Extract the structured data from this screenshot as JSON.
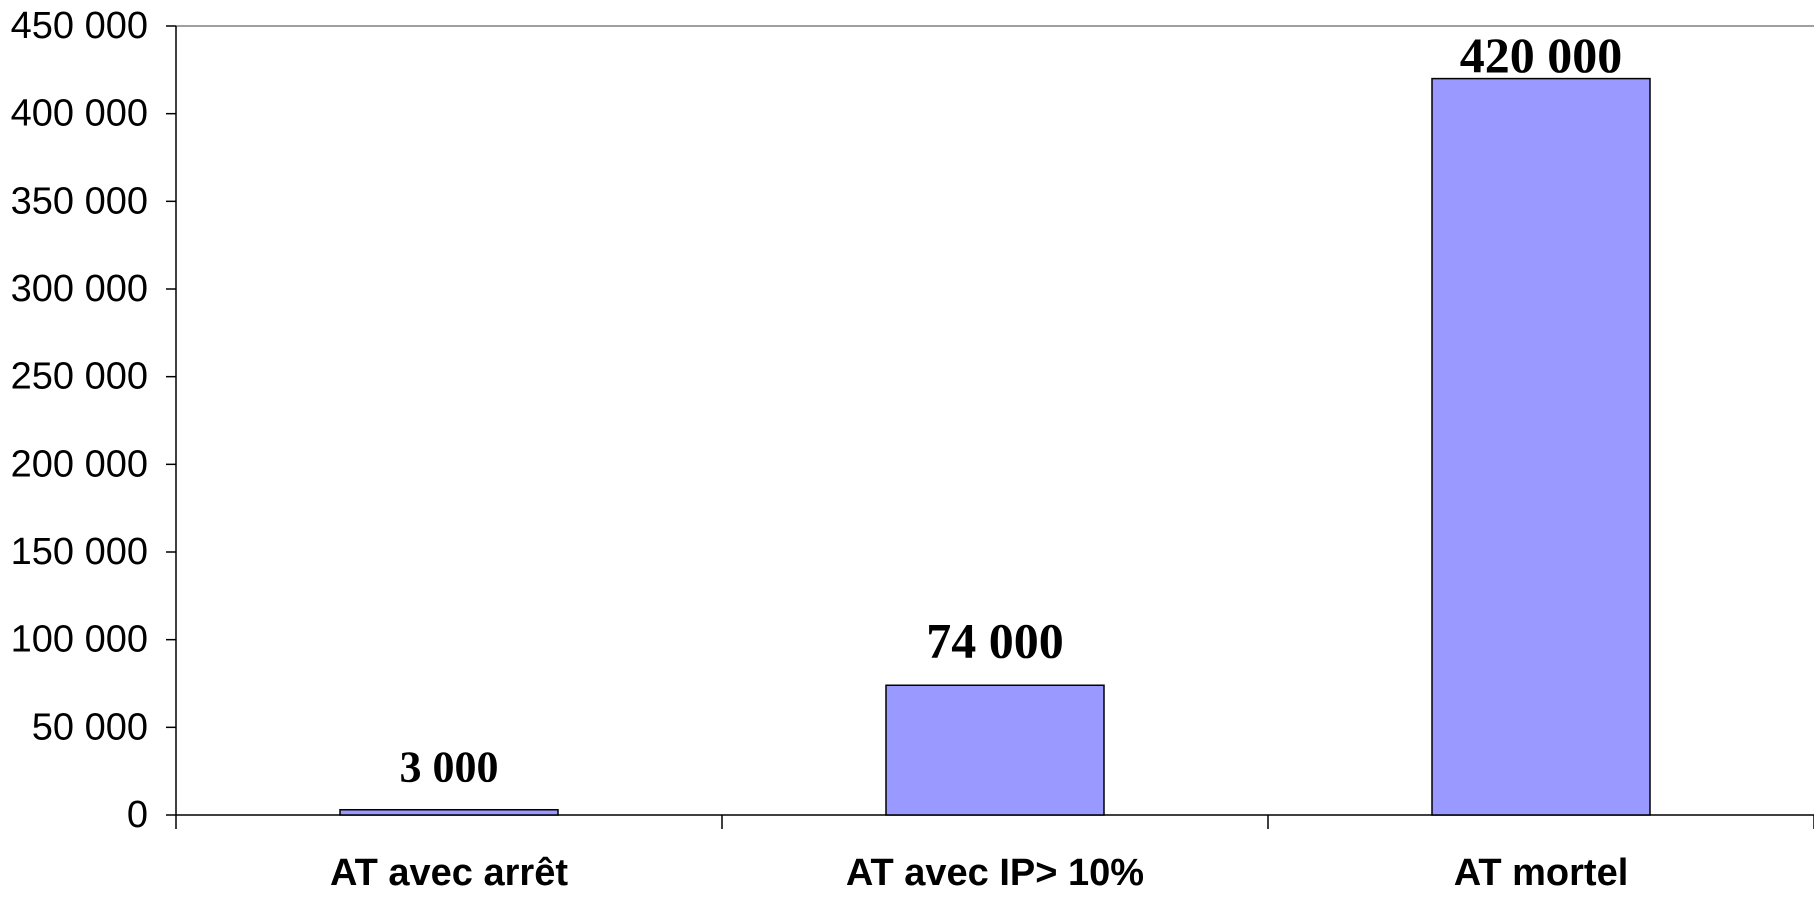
{
  "chart_data": {
    "type": "bar",
    "categories": [
      "AT avec arrêt",
      "AT avec IP> 10%",
      "AT mortel"
    ],
    "values": [
      3000,
      74000,
      420000
    ],
    "data_labels": [
      "3 000",
      "74 000",
      "420 000"
    ],
    "title": "",
    "xlabel": "",
    "ylabel": "",
    "ylim": [
      0,
      450000
    ],
    "yticks": [
      0,
      50000,
      100000,
      150000,
      200000,
      250000,
      300000,
      350000,
      400000,
      450000
    ],
    "ytick_labels": [
      "0",
      "50 000",
      "100 000",
      "150 000",
      "200 000",
      "250 000",
      "300 000",
      "350 000",
      "400 000",
      "450 000"
    ],
    "bar_color": "#9999ff",
    "bar_edge_color": "#000000",
    "grid": false,
    "legend": "none"
  }
}
